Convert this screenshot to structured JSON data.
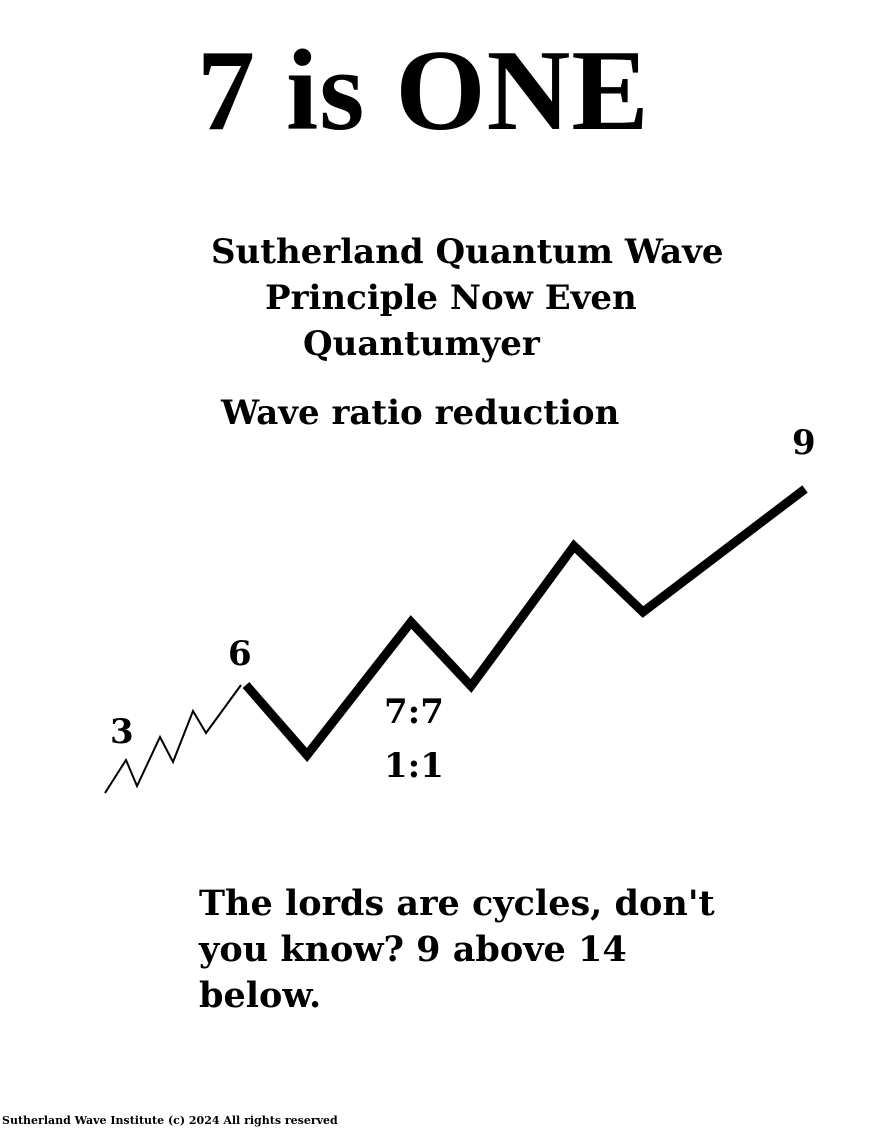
{
  "title": "7 is ONE",
  "subtitle_lines": [
    "Sutherland Quantum Wave",
    "Principle Now Even",
    "Quantumyer"
  ],
  "section_heading": "Wave ratio reduction",
  "wave_labels": {
    "start": "3",
    "mid": "6",
    "end": "9",
    "ratio_top": "7:7",
    "ratio_bottom": "1:1"
  },
  "body_text": "The lords are cycles, don't you know? 9 above 14 below.",
  "footer": "Sutherland Wave Institute (c) 2024 All rights reserved",
  "colors": {
    "background": "#ffffff",
    "ink": "#000000"
  }
}
